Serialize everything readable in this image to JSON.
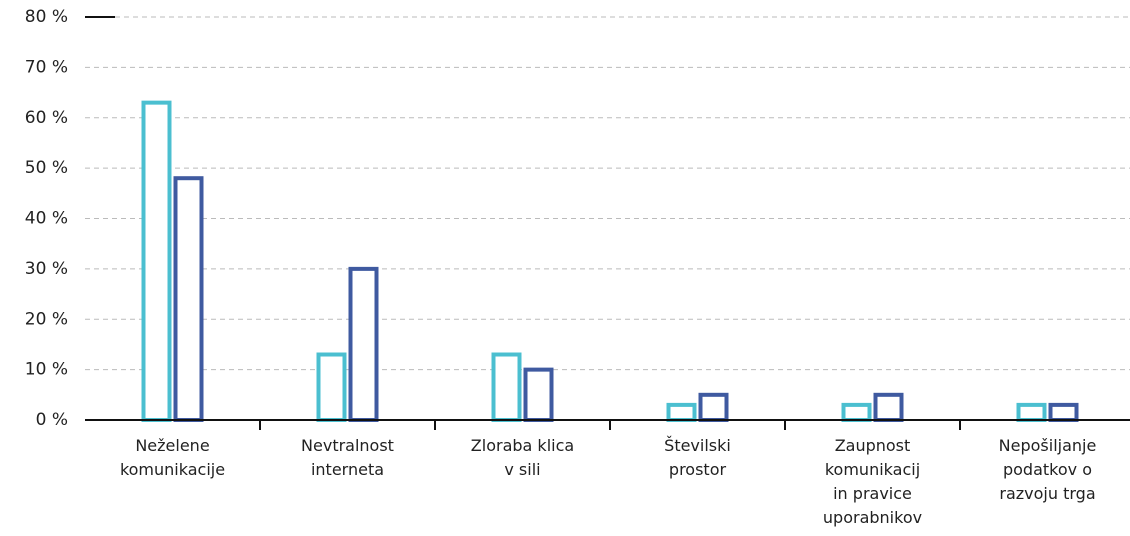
{
  "chart_data": {
    "type": "bar",
    "categories": [
      "Neželene\nkomunikacije",
      "Nevtralnost\ninterneta",
      "Zloraba klica\nv sili",
      "Številski\nprostor",
      "Zaupnost\nkomunikacij\nin pravice\nuporabnikov",
      "Nepošiljanje\npodatkov o\nrazvoju trga"
    ],
    "series": [
      {
        "color": "#4bbfd0",
        "values": [
          63,
          13,
          13,
          3,
          3,
          3
        ]
      },
      {
        "color": "#3f5aa0",
        "values": [
          48,
          30,
          10,
          5,
          5,
          3
        ]
      }
    ],
    "ylim": [
      0,
      80
    ],
    "yticks": [
      {
        "value": 0,
        "label": "0 %"
      },
      {
        "value": 10,
        "label": "10 %"
      },
      {
        "value": 20,
        "label": "20 %"
      },
      {
        "value": 30,
        "label": "30 %"
      },
      {
        "value": 40,
        "label": "40 %"
      },
      {
        "value": 50,
        "label": "50 %"
      },
      {
        "value": 60,
        "label": "60 %"
      },
      {
        "value": 70,
        "label": "70 %"
      },
      {
        "value": 80,
        "label": "80 %"
      }
    ],
    "grid": true
  }
}
